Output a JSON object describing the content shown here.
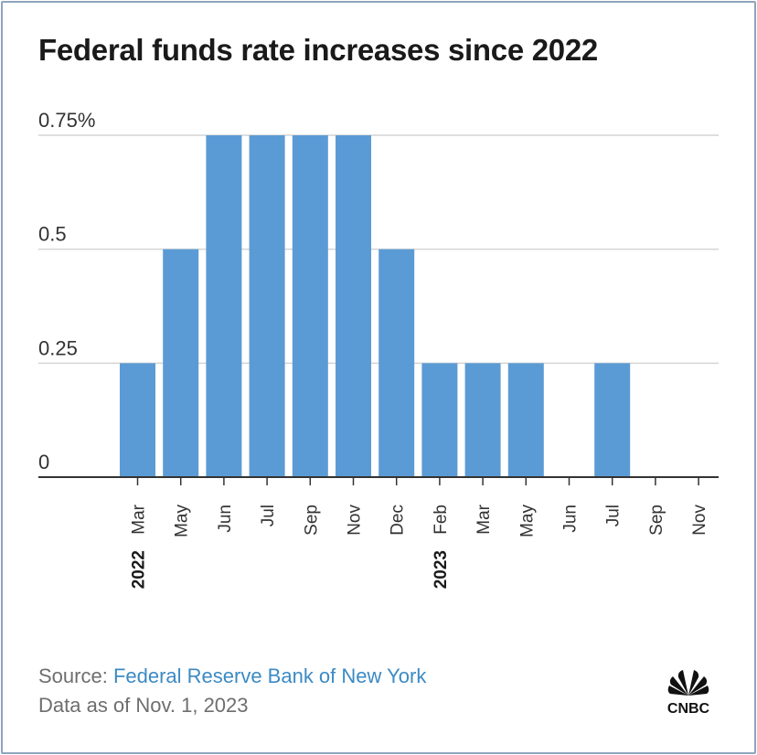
{
  "title": "Federal funds rate increases since 2022",
  "chart_data": {
    "type": "bar",
    "title": "Federal funds rate increases since 2022",
    "categories": [
      "Mar",
      "May",
      "Jun",
      "Jul",
      "Sep",
      "Nov",
      "Dec",
      "Feb",
      "Mar",
      "May",
      "Jun",
      "Jul",
      "Sep",
      "Nov"
    ],
    "year_labels": [
      {
        "index": 0,
        "label": "2022"
      },
      {
        "index": 7,
        "label": "2023"
      }
    ],
    "values": [
      0.25,
      0.5,
      0.75,
      0.75,
      0.75,
      0.75,
      0.5,
      0.25,
      0.25,
      0.25,
      0,
      0.25,
      0,
      0
    ],
    "y_ticks": [
      "0",
      "0.25",
      "0.5",
      "0.75%"
    ],
    "y_tick_values": [
      0,
      0.25,
      0.5,
      0.75
    ],
    "ylim": [
      0,
      0.75
    ],
    "xlabel": "",
    "ylabel": "",
    "grid": true,
    "bar_color": "#5b9bd5"
  },
  "footer": {
    "source_prefix": "Source: ",
    "source_link": "Federal Reserve Bank of New York",
    "data_note": "Data as of Nov. 1, 2023"
  },
  "logo": {
    "text": "CNBC",
    "icon": "peacock-icon"
  }
}
